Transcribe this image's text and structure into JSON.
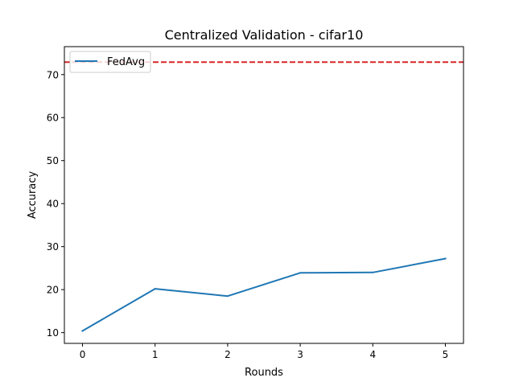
{
  "chart_data": {
    "type": "line",
    "title": "Centralized Validation - cifar10",
    "xlabel": "Rounds",
    "ylabel": "Accuracy",
    "x": [
      0,
      1,
      2,
      3,
      4,
      5
    ],
    "xlim": [
      -0.25,
      5.25
    ],
    "ylim": [
      7.5,
      76.5
    ],
    "xticks": [
      0,
      1,
      2,
      3,
      4,
      5
    ],
    "yticks": [
      10,
      20,
      30,
      40,
      50,
      60,
      70
    ],
    "grid": false,
    "legend_position": "top-left",
    "series": [
      {
        "name": "FedAvg",
        "color": "#1f77b4",
        "style": "solid",
        "values": [
          10.4,
          20.2,
          18.5,
          23.9,
          24.0,
          27.2
        ]
      }
    ],
    "reference_line": {
      "y": 72.9,
      "color": "#d62728",
      "style": "dashed"
    }
  }
}
